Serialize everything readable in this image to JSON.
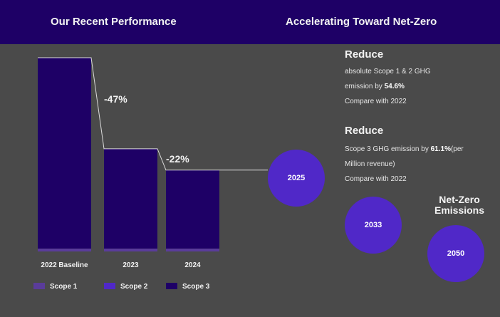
{
  "header": {
    "left_title": "Our Recent Performance",
    "right_title": "Accelerating Toward Net-Zero"
  },
  "chart_data": {
    "type": "bar",
    "stacked": true,
    "title": "Our Recent Performance",
    "categories": [
      "2022 Baseline",
      "2023",
      "2024"
    ],
    "series": [
      {
        "name": "Scope 1",
        "color": "#5a3c9a",
        "values": [
          1.5,
          1.5,
          1.5
        ]
      },
      {
        "name": "Scope 2",
        "color": "#5028c8",
        "values": [
          0,
          0,
          0
        ]
      },
      {
        "name": "Scope 3",
        "color": "#1e0066",
        "values": [
          98.5,
          51.5,
          40.5
        ]
      }
    ],
    "totals": [
      100,
      53,
      42
    ],
    "annotations": [
      {
        "label": "-47%",
        "from": "2022 Baseline",
        "to": "2023"
      },
      {
        "label": "-22%",
        "from": "2023",
        "to": "2024"
      }
    ],
    "ylim": [
      0,
      100
    ],
    "legend": "bottom",
    "grid": false
  },
  "targets": {
    "target1": {
      "heading": "Reduce",
      "line1": "absolute Scope 1 & 2 GHG",
      "line2_pre": "emission by ",
      "line2_bold": "54.6%",
      "line3": "Compare with 2022"
    },
    "target2": {
      "heading": "Reduce",
      "line1_pre": "Scope 3 GHG emission by ",
      "line1_bold": "61.1%",
      "line1_post": "(per",
      "line2": "Million revenue)",
      "line3": "Compare with 2022"
    },
    "milestones": [
      "2025",
      "2033",
      "2050"
    ],
    "net_zero_line1": "Net-Zero",
    "net_zero_line2": "Emissions"
  },
  "colors": {
    "header_bg": "#1e0066",
    "bg": "#4a4a4a",
    "circle": "#5028c8"
  }
}
